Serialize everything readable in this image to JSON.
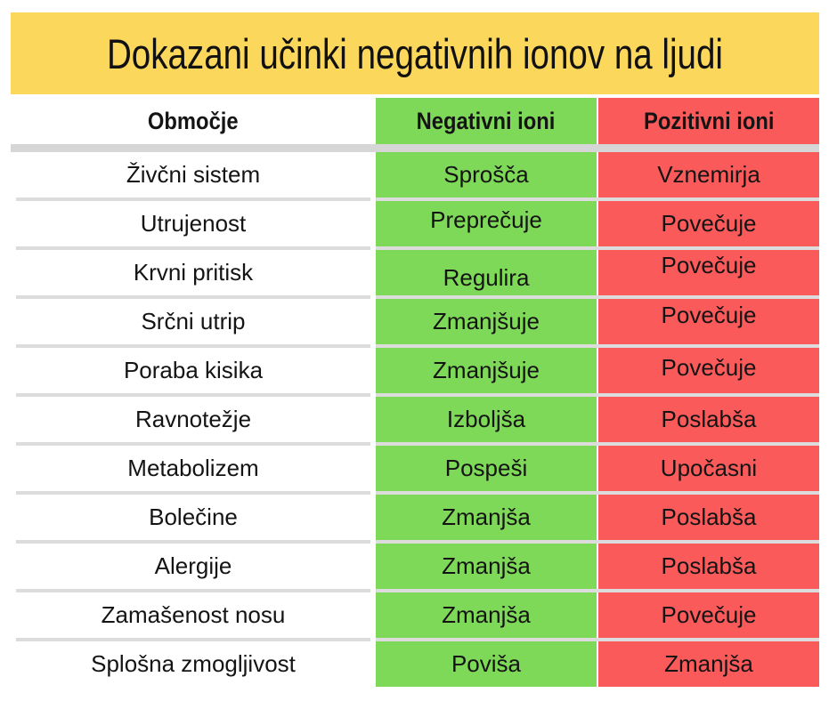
{
  "title": "Dokazani učinki negativnih ionov na ljudi",
  "chart_data": {
    "type": "table",
    "title": "Dokazani učinki negativnih ionov na ljudi",
    "columns": [
      "Območje",
      "Negativni ioni",
      "Pozitivni ioni"
    ],
    "rows": [
      [
        "Živčni sistem",
        "Sprošča",
        "Vznemirja"
      ],
      [
        "Utrujenost",
        "Preprečuje",
        "Povečuje"
      ],
      [
        "Krvni pritisk",
        "Regulira",
        "Povečuje"
      ],
      [
        "Srčni utrip",
        "Zmanjšuje",
        "Povečuje"
      ],
      [
        "Poraba kisika",
        "Zmanjšuje",
        "Povečuje"
      ],
      [
        "Ravnotežje",
        "Izboljša",
        "Poslabša"
      ],
      [
        "Metabolizem",
        "Pospeši",
        "Upočasni"
      ],
      [
        "Bolečine",
        "Zmanjša",
        "Poslabša"
      ],
      [
        "Alergije",
        "Zmanjša",
        "Poslabša"
      ],
      [
        "Zamašenost nosu",
        "Zmanjša",
        "Povečuje"
      ],
      [
        "Splošna zmogljivost",
        "Poviša",
        "Zmanjša"
      ]
    ],
    "column_colors": [
      "#FFFFFF",
      "#7FD958",
      "#FB5A5A"
    ],
    "layout": {
      "grid": "off",
      "legend_position": "none"
    }
  },
  "colors": {
    "banner_yellow": "#FBD75C",
    "negative_green": "#7FD958",
    "positive_red": "#FB5A5A",
    "header_divider_gray": "#D6D6D6",
    "row_separator_gray": "#DCDCDC",
    "text_black": "#141414"
  }
}
